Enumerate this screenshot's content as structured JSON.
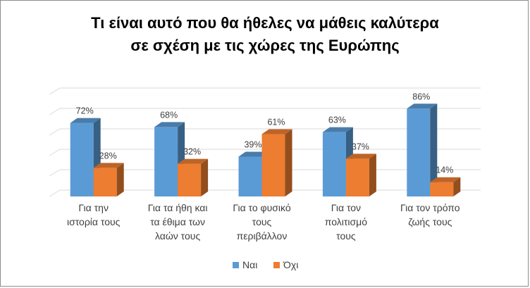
{
  "chart_data": {
    "type": "bar",
    "title_lines": [
      "Τι είναι αυτό που θα ήθελες να μάθεις καλύτερα",
      "σε σχέση με τις χώρες της Ευρώπης"
    ],
    "categories": [
      [
        "Για την",
        "ιστορία τους"
      ],
      [
        "Για τα ήθη και",
        "τα έθιμα των",
        "λαών τους"
      ],
      [
        "Για το φυσικό",
        "τους",
        "περιβάλλον"
      ],
      [
        "Για τον",
        "πολιτισμό",
        "τους"
      ],
      [
        "Για τον τρόπο",
        "ζωής τους"
      ]
    ],
    "series": [
      {
        "name": "Ναι",
        "values": [
          72,
          68,
          39,
          63,
          86
        ],
        "labels": [
          "72%",
          "68%",
          "39%",
          "63%",
          "86%"
        ],
        "color": "#5b9bd5"
      },
      {
        "name": "Όχι",
        "values": [
          28,
          32,
          61,
          37,
          14
        ],
        "labels": [
          "28%",
          "32%",
          "61%",
          "37%",
          "14%"
        ],
        "color": "#ed7d31"
      }
    ],
    "ylim": [
      0,
      100
    ],
    "grid": true,
    "three_d": true,
    "legend_position": "bottom"
  }
}
